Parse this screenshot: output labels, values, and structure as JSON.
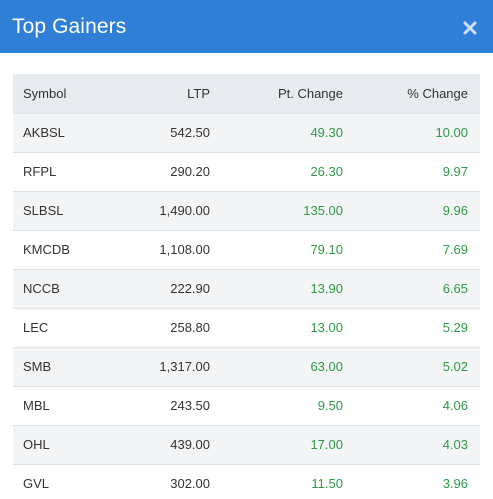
{
  "header": {
    "title": "Top Gainers",
    "close_icon": "close-icon",
    "background_color": "#2f7fd6"
  },
  "table": {
    "columns": [
      "Symbol",
      "LTP",
      "Pt. Change",
      "% Change"
    ],
    "gain_color": "#2e9a46",
    "rows": [
      {
        "symbol": "AKBSL",
        "ltp": "542.50",
        "pt_change": "49.30",
        "pct_change": "10.00"
      },
      {
        "symbol": "RFPL",
        "ltp": "290.20",
        "pt_change": "26.30",
        "pct_change": "9.97"
      },
      {
        "symbol": "SLBSL",
        "ltp": "1,490.00",
        "pt_change": "135.00",
        "pct_change": "9.96"
      },
      {
        "symbol": "KMCDB",
        "ltp": "1,108.00",
        "pt_change": "79.10",
        "pct_change": "7.69"
      },
      {
        "symbol": "NCCB",
        "ltp": "222.90",
        "pt_change": "13.90",
        "pct_change": "6.65"
      },
      {
        "symbol": "LEC",
        "ltp": "258.80",
        "pt_change": "13.00",
        "pct_change": "5.29"
      },
      {
        "symbol": "SMB",
        "ltp": "1,317.00",
        "pt_change": "63.00",
        "pct_change": "5.02"
      },
      {
        "symbol": "MBL",
        "ltp": "243.50",
        "pt_change": "9.50",
        "pct_change": "4.06"
      },
      {
        "symbol": "OHL",
        "ltp": "439.00",
        "pt_change": "17.00",
        "pct_change": "4.03"
      },
      {
        "symbol": "GVL",
        "ltp": "302.00",
        "pt_change": "11.50",
        "pct_change": "3.96"
      }
    ]
  }
}
